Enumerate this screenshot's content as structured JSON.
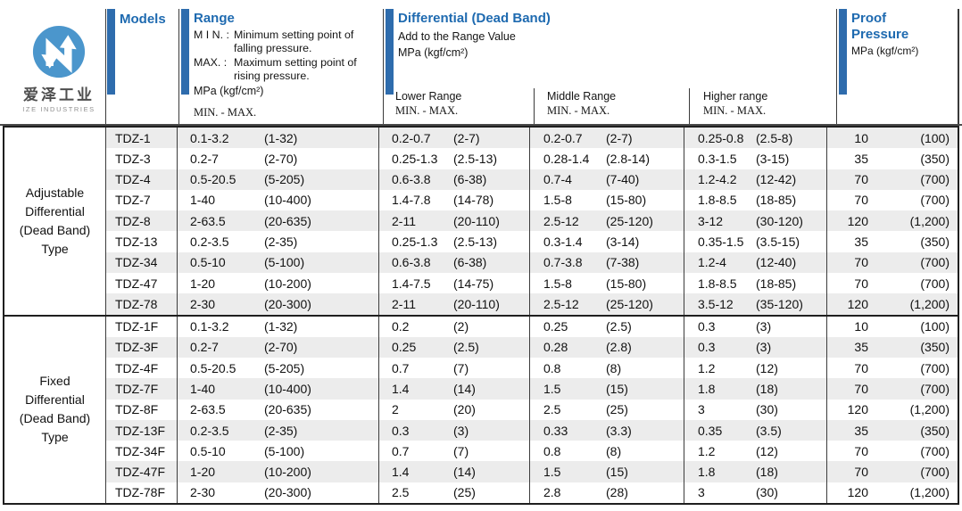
{
  "brand": {
    "name_cn": "爱泽工业",
    "name_en": "IZE INDUSTRIES"
  },
  "colors": {
    "accent_blue_text": "#1e6ab0",
    "accent_bar_blue": "#2e6cad",
    "logo_blue": "#4b96cc",
    "row_alt_gray": "#ececec",
    "border_dark": "#1f1f1f"
  },
  "header": {
    "models_label": "Models",
    "range": {
      "title": "Range",
      "notes": [
        {
          "label": "M I N. :",
          "text": "Minimum setting point of falling pressure."
        },
        {
          "label": "MAX. :",
          "text": "Maximum setting point of rising pressure."
        }
      ],
      "unit": "MPa (kgf/cm²)",
      "minmax": "MIN. - MAX."
    },
    "differential": {
      "title": "Differential (Dead Band)",
      "subtitle": "Add to the Range Value",
      "unit": "MPa (kgf/cm²)",
      "sub_columns": [
        {
          "label": "Lower Range",
          "minmax": "MIN. - MAX."
        },
        {
          "label": "Middle Range",
          "minmax": "MIN. - MAX."
        },
        {
          "label": "Higher range",
          "minmax": "MIN. - MAX."
        }
      ]
    },
    "proof": {
      "title_line1": "Proof",
      "title_line2": "Pressure",
      "unit": "MPa (kgf/cm²)"
    }
  },
  "groups": [
    {
      "label": "Adjustable Differential (Dead Band) Type",
      "rows": [
        {
          "model": "TDZ-1",
          "range": [
            "0.1-3.2",
            "(1-32)"
          ],
          "lower": [
            "0.2-0.7",
            "(2-7)"
          ],
          "middle": [
            "0.2-0.7",
            "(2-7)"
          ],
          "higher": [
            "0.25-0.8",
            "(2.5-8)"
          ],
          "proof": [
            "10",
            "(100)"
          ]
        },
        {
          "model": "TDZ-3",
          "range": [
            "0.2-7",
            "(2-70)"
          ],
          "lower": [
            "0.25-1.3",
            "(2.5-13)"
          ],
          "middle": [
            "0.28-1.4",
            "(2.8-14)"
          ],
          "higher": [
            "0.3-1.5",
            "(3-15)"
          ],
          "proof": [
            "35",
            "(350)"
          ]
        },
        {
          "model": "TDZ-4",
          "range": [
            "0.5-20.5",
            "(5-205)"
          ],
          "lower": [
            "0.6-3.8",
            "(6-38)"
          ],
          "middle": [
            "0.7-4",
            "(7-40)"
          ],
          "higher": [
            "1.2-4.2",
            "(12-42)"
          ],
          "proof": [
            "70",
            "(700)"
          ]
        },
        {
          "model": "TDZ-7",
          "range": [
            "1-40",
            "(10-400)"
          ],
          "lower": [
            "1.4-7.8",
            "(14-78)"
          ],
          "middle": [
            "1.5-8",
            "(15-80)"
          ],
          "higher": [
            "1.8-8.5",
            "(18-85)"
          ],
          "proof": [
            "70",
            "(700)"
          ]
        },
        {
          "model": "TDZ-8",
          "range": [
            "2-63.5",
            "(20-635)"
          ],
          "lower": [
            "2-11",
            "(20-110)"
          ],
          "middle": [
            "2.5-12",
            "(25-120)"
          ],
          "higher": [
            "3-12",
            "(30-120)"
          ],
          "proof": [
            "120",
            "(1,200)"
          ]
        },
        {
          "model": "TDZ-13",
          "range": [
            "0.2-3.5",
            "(2-35)"
          ],
          "lower": [
            "0.25-1.3",
            "(2.5-13)"
          ],
          "middle": [
            "0.3-1.4",
            "(3-14)"
          ],
          "higher": [
            "0.35-1.5",
            "(3.5-15)"
          ],
          "proof": [
            "35",
            "(350)"
          ]
        },
        {
          "model": "TDZ-34",
          "range": [
            "0.5-10",
            "(5-100)"
          ],
          "lower": [
            "0.6-3.8",
            "(6-38)"
          ],
          "middle": [
            "0.7-3.8",
            "(7-38)"
          ],
          "higher": [
            "1.2-4",
            "(12-40)"
          ],
          "proof": [
            "70",
            "(700)"
          ]
        },
        {
          "model": "TDZ-47",
          "range": [
            "1-20",
            "(10-200)"
          ],
          "lower": [
            "1.4-7.5",
            "(14-75)"
          ],
          "middle": [
            "1.5-8",
            "(15-80)"
          ],
          "higher": [
            "1.8-8.5",
            "(18-85)"
          ],
          "proof": [
            "70",
            "(700)"
          ]
        },
        {
          "model": "TDZ-78",
          "range": [
            "2-30",
            "(20-300)"
          ],
          "lower": [
            "2-11",
            "(20-110)"
          ],
          "middle": [
            "2.5-12",
            "(25-120)"
          ],
          "higher": [
            "3.5-12",
            "(35-120)"
          ],
          "proof": [
            "120",
            "(1,200)"
          ]
        }
      ]
    },
    {
      "label": "Fixed Differential (Dead Band) Type",
      "rows": [
        {
          "model": "TDZ-1F",
          "range": [
            "0.1-3.2",
            "(1-32)"
          ],
          "lower": [
            "0.2",
            "(2)"
          ],
          "middle": [
            "0.25",
            "(2.5)"
          ],
          "higher": [
            "0.3",
            "(3)"
          ],
          "proof": [
            "10",
            "(100)"
          ]
        },
        {
          "model": "TDZ-3F",
          "range": [
            "0.2-7",
            "(2-70)"
          ],
          "lower": [
            "0.25",
            "(2.5)"
          ],
          "middle": [
            "0.28",
            "(2.8)"
          ],
          "higher": [
            "0.3",
            "(3)"
          ],
          "proof": [
            "35",
            "(350)"
          ]
        },
        {
          "model": "TDZ-4F",
          "range": [
            "0.5-20.5",
            "(5-205)"
          ],
          "lower": [
            "0.7",
            "(7)"
          ],
          "middle": [
            "0.8",
            "(8)"
          ],
          "higher": [
            "1.2",
            "(12)"
          ],
          "proof": [
            "70",
            "(700)"
          ]
        },
        {
          "model": "TDZ-7F",
          "range": [
            "1-40",
            "(10-400)"
          ],
          "lower": [
            "1.4",
            "(14)"
          ],
          "middle": [
            "1.5",
            "(15)"
          ],
          "higher": [
            "1.8",
            "(18)"
          ],
          "proof": [
            "70",
            "(700)"
          ]
        },
        {
          "model": "TDZ-8F",
          "range": [
            "2-63.5",
            "(20-635)"
          ],
          "lower": [
            "2",
            "(20)"
          ],
          "middle": [
            "2.5",
            "(25)"
          ],
          "higher": [
            "3",
            "(30)"
          ],
          "proof": [
            "120",
            "(1,200)"
          ]
        },
        {
          "model": "TDZ-13F",
          "range": [
            "0.2-3.5",
            "(2-35)"
          ],
          "lower": [
            "0.3",
            "(3)"
          ],
          "middle": [
            "0.33",
            "(3.3)"
          ],
          "higher": [
            "0.35",
            "(3.5)"
          ],
          "proof": [
            "35",
            "(350)"
          ]
        },
        {
          "model": "TDZ-34F",
          "range": [
            "0.5-10",
            "(5-100)"
          ],
          "lower": [
            "0.7",
            "(7)"
          ],
          "middle": [
            "0.8",
            "(8)"
          ],
          "higher": [
            "1.2",
            "(12)"
          ],
          "proof": [
            "70",
            "(700)"
          ]
        },
        {
          "model": "TDZ-47F",
          "range": [
            "1-20",
            "(10-200)"
          ],
          "lower": [
            "1.4",
            "(14)"
          ],
          "middle": [
            "1.5",
            "(15)"
          ],
          "higher": [
            "1.8",
            "(18)"
          ],
          "proof": [
            "70",
            "(700)"
          ]
        },
        {
          "model": "TDZ-78F",
          "range": [
            "2-30",
            "(20-300)"
          ],
          "lower": [
            "2.5",
            "(25)"
          ],
          "middle": [
            "2.8",
            "(28)"
          ],
          "higher": [
            "3",
            "(30)"
          ],
          "proof": [
            "120",
            "(1,200)"
          ]
        }
      ]
    }
  ]
}
